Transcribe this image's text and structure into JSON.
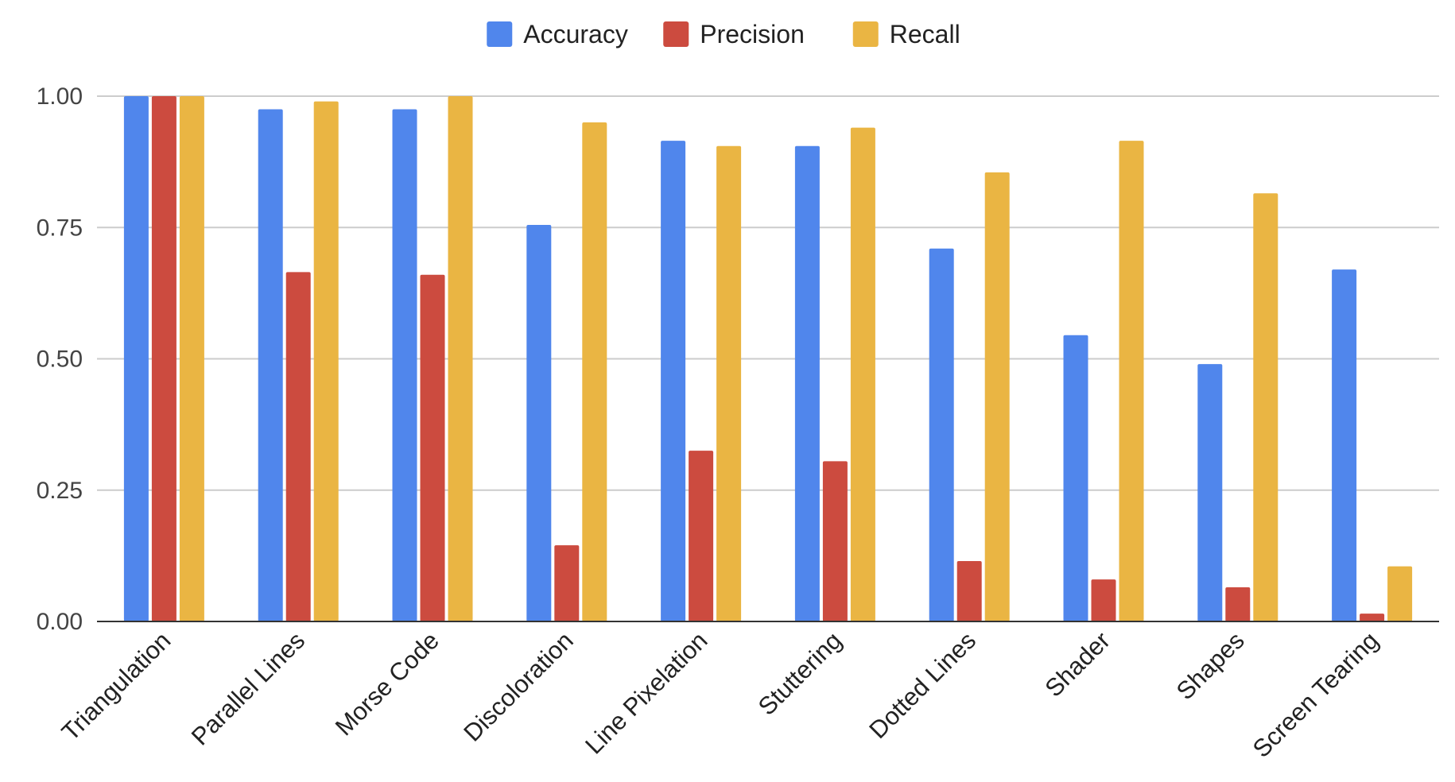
{
  "chart_data": {
    "type": "bar",
    "title": "",
    "xlabel": "",
    "ylabel": "",
    "ylim": [
      0,
      1
    ],
    "yticks": [
      "0.00",
      "0.25",
      "0.50",
      "0.75",
      "1.00"
    ],
    "ytick_values": [
      0,
      0.25,
      0.5,
      0.75,
      1.0
    ],
    "grid": true,
    "legend_position": "top",
    "categories": [
      "Triangulation",
      "Parallel Lines",
      "Morse Code",
      "Discoloration",
      "Line Pixelation",
      "Stuttering",
      "Dotted Lines",
      "Shader",
      "Shapes",
      "Screen Tearing"
    ],
    "series": [
      {
        "name": "Accuracy",
        "color": "#5086ec",
        "values": [
          1.0,
          0.975,
          0.975,
          0.755,
          0.915,
          0.905,
          0.71,
          0.545,
          0.49,
          0.67
        ]
      },
      {
        "name": "Precision",
        "color": "#cc4b3f",
        "values": [
          1.0,
          0.665,
          0.66,
          0.145,
          0.325,
          0.305,
          0.115,
          0.08,
          0.065,
          0.015
        ]
      },
      {
        "name": "Recall",
        "color": "#eab543",
        "values": [
          1.0,
          0.99,
          1.0,
          0.95,
          0.905,
          0.94,
          0.855,
          0.915,
          0.815,
          0.105
        ]
      }
    ]
  }
}
